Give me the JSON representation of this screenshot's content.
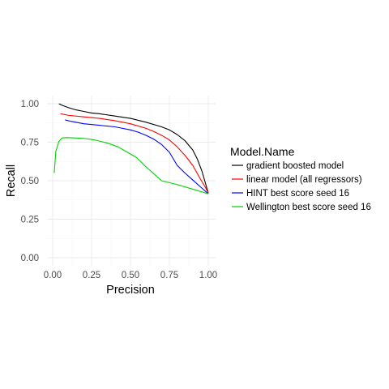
{
  "chart_data": {
    "type": "line",
    "xlabel": "Precision",
    "ylabel": "Recall",
    "xlim": [
      0,
      1
    ],
    "ylim": [
      0,
      1
    ],
    "xticks": [
      0,
      0.25,
      0.5,
      0.75,
      1
    ],
    "xtick_labels": [
      "0.00",
      "0.25",
      "0.50",
      "0.75",
      "1.00"
    ],
    "yticks": [
      0,
      0.25,
      0.5,
      0.75,
      1
    ],
    "ytick_labels": [
      "0.00",
      "0.25",
      "0.50",
      "0.75",
      "1.00"
    ],
    "grid": true,
    "legend": {
      "title": "Model.Name",
      "placement": "right"
    },
    "series": [
      {
        "name": "gradient boosted model",
        "color": "#000000",
        "x": [
          0.04,
          0.06,
          0.1,
          0.15,
          0.2,
          0.25,
          0.3,
          0.4,
          0.5,
          0.6,
          0.7,
          0.75,
          0.8,
          0.85,
          0.9,
          0.93,
          0.96,
          0.98,
          1.0
        ],
        "y": [
          1.0,
          0.99,
          0.975,
          0.96,
          0.95,
          0.94,
          0.935,
          0.92,
          0.905,
          0.88,
          0.85,
          0.83,
          0.8,
          0.76,
          0.7,
          0.64,
          0.56,
          0.49,
          0.42
        ]
      },
      {
        "name": "linear model (all regressors)",
        "color": "#ff0000",
        "x": [
          0.05,
          0.1,
          0.2,
          0.3,
          0.4,
          0.5,
          0.6,
          0.65,
          0.7,
          0.75,
          0.8,
          0.85,
          0.9,
          0.95,
          0.98,
          1.0
        ],
        "y": [
          0.935,
          0.925,
          0.915,
          0.905,
          0.89,
          0.87,
          0.84,
          0.82,
          0.795,
          0.765,
          0.72,
          0.665,
          0.6,
          0.51,
          0.46,
          0.42
        ]
      },
      {
        "name": "HINT best score seed 16",
        "color": "#0000ff",
        "x": [
          0.08,
          0.12,
          0.2,
          0.3,
          0.4,
          0.5,
          0.55,
          0.6,
          0.65,
          0.7,
          0.75,
          0.8,
          0.85,
          0.9,
          0.95,
          1.0
        ],
        "y": [
          0.895,
          0.885,
          0.87,
          0.86,
          0.85,
          0.83,
          0.815,
          0.795,
          0.77,
          0.735,
          0.685,
          0.6,
          0.55,
          0.505,
          0.46,
          0.415
        ]
      },
      {
        "name": "Wellington best score seed 16",
        "color": "#00d000",
        "x": [
          0.01,
          0.02,
          0.04,
          0.06,
          0.09,
          0.14,
          0.2,
          0.27,
          0.35,
          0.42,
          0.48,
          0.54,
          0.6,
          0.65,
          0.7,
          0.8,
          0.9,
          1.0
        ],
        "y": [
          0.55,
          0.69,
          0.755,
          0.778,
          0.78,
          0.778,
          0.775,
          0.765,
          0.745,
          0.72,
          0.685,
          0.65,
          0.59,
          0.545,
          0.5,
          0.475,
          0.445,
          0.415
        ]
      }
    ]
  }
}
